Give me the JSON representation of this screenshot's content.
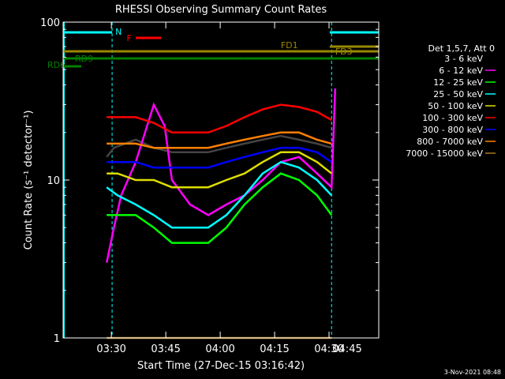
{
  "chart_data": {
    "type": "line",
    "title": "RHESSI Observing Summary Count Rates",
    "xlabel": "Start Time (27-Dec-15 03:16:42)",
    "ylabel": "Count Rate (s⁻¹ detector⁻¹)",
    "y_scale": "log",
    "ylim": [
      1,
      100
    ],
    "xlim_minutes": [
      0,
      87
    ],
    "x_ticks": [
      {
        "label": "03:30",
        "minute": 13.3
      },
      {
        "label": "03:45",
        "minute": 28.3
      },
      {
        "label": "04:00",
        "minute": 43.3
      },
      {
        "label": "04:15",
        "minute": 58.3
      },
      {
        "label": "04:30",
        "minute": 73.3
      },
      {
        "label": "04:45",
        "minute": 88.3
      }
    ],
    "y_ticks": [
      {
        "label": "1",
        "value": 1
      },
      {
        "label": "10",
        "value": 10
      },
      {
        "label": "100",
        "value": 100
      }
    ],
    "legend_title": "Det 1,5,7, Att 0",
    "legend_position": "right",
    "series": [
      {
        "name": "3 - 6 keV",
        "color": "#000000",
        "values": [
          [
            12,
            14
          ],
          [
            14,
            16
          ],
          [
            20,
            18
          ],
          [
            25,
            16
          ],
          [
            30,
            15
          ],
          [
            35,
            15
          ],
          [
            40,
            15
          ],
          [
            45,
            16
          ],
          [
            50,
            17
          ],
          [
            55,
            18
          ],
          [
            60,
            19
          ],
          [
            65,
            18
          ],
          [
            70,
            17
          ],
          [
            74,
            16
          ]
        ]
      },
      {
        "name": "6 - 12 keV",
        "color": "#ff00ff",
        "values": [
          [
            12,
            3
          ],
          [
            14,
            5
          ],
          [
            16,
            8
          ],
          [
            20,
            13
          ],
          [
            25,
            30
          ],
          [
            28,
            22
          ],
          [
            30,
            10
          ],
          [
            35,
            7
          ],
          [
            40,
            6
          ],
          [
            45,
            7
          ],
          [
            50,
            8
          ],
          [
            55,
            10
          ],
          [
            60,
            13
          ],
          [
            65,
            14
          ],
          [
            70,
            11
          ],
          [
            74,
            9
          ],
          [
            75,
            38
          ]
        ]
      },
      {
        "name": "12 - 25 keV",
        "color": "#00ff00",
        "values": [
          [
            12,
            6
          ],
          [
            15,
            6
          ],
          [
            20,
            6
          ],
          [
            25,
            5
          ],
          [
            30,
            4
          ],
          [
            35,
            4
          ],
          [
            40,
            4
          ],
          [
            45,
            5
          ],
          [
            50,
            7
          ],
          [
            55,
            9
          ],
          [
            60,
            11
          ],
          [
            65,
            10
          ],
          [
            70,
            8
          ],
          [
            74,
            6
          ]
        ]
      },
      {
        "name": "25 - 50 keV",
        "color": "#00ffff",
        "values": [
          [
            12,
            9
          ],
          [
            15,
            8
          ],
          [
            20,
            7
          ],
          [
            25,
            6
          ],
          [
            30,
            5
          ],
          [
            35,
            5
          ],
          [
            40,
            5
          ],
          [
            45,
            6
          ],
          [
            50,
            8
          ],
          [
            55,
            11
          ],
          [
            60,
            13
          ],
          [
            65,
            12
          ],
          [
            70,
            10
          ],
          [
            74,
            8
          ]
        ]
      },
      {
        "name": "50 - 100 keV",
        "color": "#dddd00",
        "values": [
          [
            12,
            11
          ],
          [
            15,
            11
          ],
          [
            20,
            10
          ],
          [
            25,
            10
          ],
          [
            30,
            9
          ],
          [
            35,
            9
          ],
          [
            40,
            9
          ],
          [
            45,
            10
          ],
          [
            50,
            11
          ],
          [
            55,
            13
          ],
          [
            60,
            15
          ],
          [
            65,
            15
          ],
          [
            70,
            13
          ],
          [
            74,
            11
          ]
        ]
      },
      {
        "name": "100 - 300 keV",
        "color": "#ff0000",
        "values": [
          [
            12,
            25
          ],
          [
            15,
            25
          ],
          [
            20,
            25
          ],
          [
            25,
            23
          ],
          [
            30,
            20
          ],
          [
            35,
            20
          ],
          [
            40,
            20
          ],
          [
            45,
            22
          ],
          [
            50,
            25
          ],
          [
            55,
            28
          ],
          [
            60,
            30
          ],
          [
            65,
            29
          ],
          [
            70,
            27
          ],
          [
            74,
            24
          ]
        ]
      },
      {
        "name": "300 - 800 keV",
        "color": "#0000ff",
        "values": [
          [
            12,
            13
          ],
          [
            15,
            13
          ],
          [
            20,
            13
          ],
          [
            25,
            12
          ],
          [
            30,
            12
          ],
          [
            35,
            12
          ],
          [
            40,
            12
          ],
          [
            45,
            13
          ],
          [
            50,
            14
          ],
          [
            55,
            15
          ],
          [
            60,
            16
          ],
          [
            65,
            16
          ],
          [
            70,
            15
          ],
          [
            74,
            13
          ]
        ]
      },
      {
        "name": "800 - 7000 keV",
        "color": "#ff8000",
        "values": [
          [
            12,
            17
          ],
          [
            15,
            17
          ],
          [
            20,
            17
          ],
          [
            25,
            16
          ],
          [
            30,
            16
          ],
          [
            35,
            16
          ],
          [
            40,
            16
          ],
          [
            45,
            17
          ],
          [
            50,
            18
          ],
          [
            55,
            19
          ],
          [
            60,
            20
          ],
          [
            65,
            20
          ],
          [
            70,
            18
          ],
          [
            74,
            17
          ]
        ]
      },
      {
        "name": "7000 - 15000 keV",
        "color": "#aa7722",
        "values": [
          [
            12,
            1
          ],
          [
            15,
            1
          ],
          [
            20,
            1
          ],
          [
            25,
            1
          ],
          [
            30,
            1
          ],
          [
            35,
            1
          ],
          [
            40,
            1
          ],
          [
            45,
            1
          ],
          [
            50,
            1
          ],
          [
            55,
            1
          ],
          [
            60,
            1
          ],
          [
            65,
            1
          ],
          [
            70,
            1
          ],
          [
            74,
            1
          ]
        ]
      }
    ],
    "flag_bars": [
      {
        "label": "N",
        "color": "#00ffff",
        "segments": [
          [
            0,
            13.5
          ],
          [
            73.5,
            87
          ]
        ]
      },
      {
        "label": "F",
        "color": "#ff0000",
        "segments": [
          [
            20,
            27
          ]
        ]
      },
      {
        "label": "FD1",
        "color": "#998800",
        "segments": [
          [
            0,
            73.5
          ],
          [
            73.5,
            87
          ]
        ]
      },
      {
        "label": "FD3",
        "color": "#998800",
        "segments": [
          [
            73.5,
            87
          ]
        ]
      },
      {
        "label": "RD6",
        "color": "#008000",
        "segments": [
          [
            0,
            5
          ]
        ]
      },
      {
        "label": "RD9",
        "color": "#008000",
        "segments": [
          [
            0,
            37.5
          ],
          [
            37.5,
            50
          ],
          [
            50,
            62
          ],
          [
            62,
            87
          ]
        ]
      }
    ],
    "vlines_minutes": [
      {
        "minute": 13.5,
        "color": "#00ffff"
      },
      {
        "minute": 74,
        "color": "#00ffff"
      },
      {
        "minute": 87,
        "color": "#00ffff"
      }
    ],
    "footer_timestamp": "3-Nov-2021 08:48"
  }
}
